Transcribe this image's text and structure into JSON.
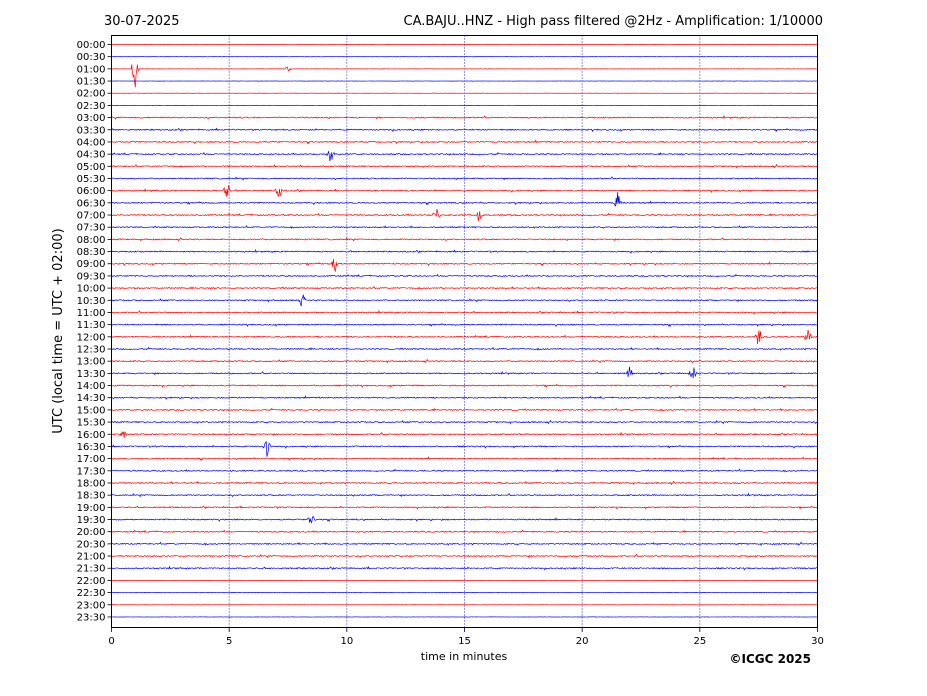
{
  "header": {
    "date": "30-07-2025",
    "title": "CA.BAJU..HNZ - High pass filtered @2Hz - Amplification: 1/10000"
  },
  "footer": {
    "copyright": "©ICGC 2025"
  },
  "colors": {
    "even_trace": "#ff0000",
    "odd_trace": "#0000ff",
    "grid": "#0000aa",
    "axis": "#000000"
  },
  "chart_data": {
    "type": "line",
    "title": "CA.BAJU..HNZ - High pass filtered @2Hz - Amplification: 1/10000",
    "xlabel": "time in minutes",
    "ylabel": "UTC (local time = UTC + 02:00)",
    "xlim": [
      0,
      30
    ],
    "xticks": [
      0,
      5,
      10,
      15,
      20,
      25,
      30
    ],
    "grid": "vertical dotted",
    "row_labels": [
      "00:00",
      "00:30",
      "01:00",
      "01:30",
      "02:00",
      "02:30",
      "03:00",
      "03:30",
      "04:00",
      "04:30",
      "05:00",
      "05:30",
      "06:00",
      "06:30",
      "07:00",
      "07:30",
      "08:00",
      "08:30",
      "09:00",
      "09:30",
      "10:00",
      "10:30",
      "11:00",
      "11:30",
      "12:00",
      "12:30",
      "13:00",
      "13:30",
      "14:00",
      "14:30",
      "15:00",
      "15:30",
      "16:00",
      "16:30",
      "17:00",
      "17:30",
      "18:00",
      "18:30",
      "19:00",
      "19:30",
      "20:00",
      "20:30",
      "21:00",
      "21:30",
      "22:00",
      "22:30",
      "23:00",
      "23:30"
    ],
    "trace_colors": [
      "#ff0000",
      "#0000ff"
    ],
    "events": [
      {
        "row": "01:00",
        "minute": 1.0,
        "amplitude": 1.0
      },
      {
        "row": "01:00",
        "minute": 7.5,
        "amplitude": 0.15
      },
      {
        "row": "04:30",
        "minute": 9.3,
        "amplitude": 0.45
      },
      {
        "row": "06:00",
        "minute": 4.9,
        "amplitude": 0.4
      },
      {
        "row": "06:00",
        "minute": 7.1,
        "amplitude": 0.45
      },
      {
        "row": "06:30",
        "minute": 21.5,
        "amplitude": 0.55
      },
      {
        "row": "07:00",
        "minute": 13.8,
        "amplitude": 0.5
      },
      {
        "row": "07:00",
        "minute": 15.6,
        "amplitude": 0.4
      },
      {
        "row": "09:00",
        "minute": 9.5,
        "amplitude": 0.45
      },
      {
        "row": "10:30",
        "minute": 8.1,
        "amplitude": 0.4
      },
      {
        "row": "12:00",
        "minute": 27.5,
        "amplitude": 0.5
      },
      {
        "row": "12:00",
        "minute": 29.6,
        "amplitude": 0.45
      },
      {
        "row": "13:30",
        "minute": 22.0,
        "amplitude": 0.35
      },
      {
        "row": "13:30",
        "minute": 24.7,
        "amplitude": 0.4
      },
      {
        "row": "16:00",
        "minute": 0.5,
        "amplitude": 0.3
      },
      {
        "row": "16:30",
        "minute": 6.6,
        "amplitude": 0.55
      },
      {
        "row": "19:30",
        "minute": 8.5,
        "amplitude": 0.4
      }
    ]
  }
}
